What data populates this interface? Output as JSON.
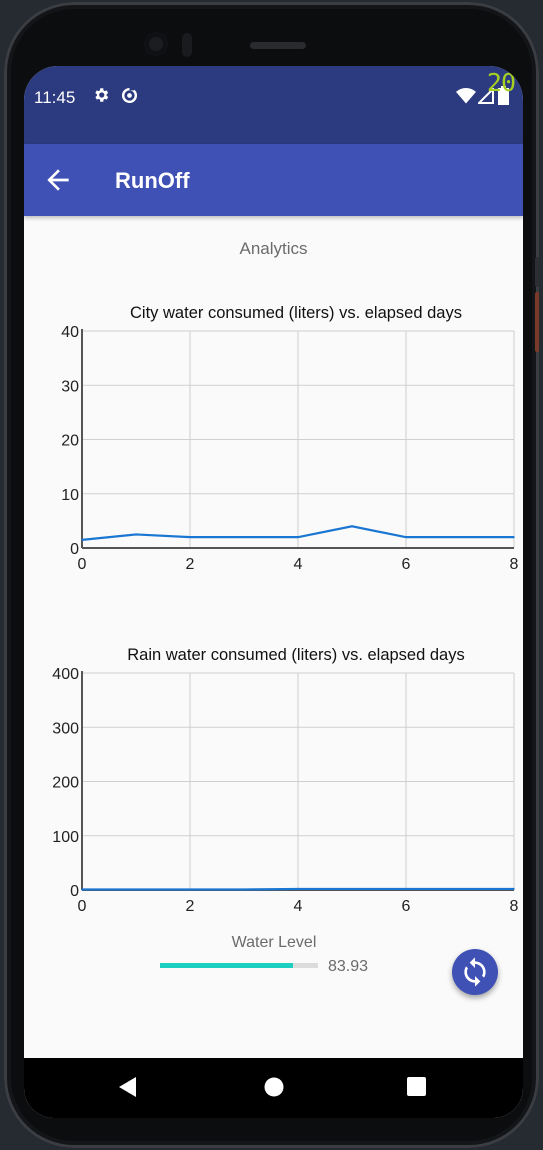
{
  "status_bar": {
    "time": "11:45",
    "icons": [
      "gear-icon",
      "data-saver-icon",
      "wifi-icon",
      "signal-icon",
      "battery-icon"
    ],
    "corner_number": "20"
  },
  "app_bar": {
    "title": "RunOff",
    "back_icon": "arrow-left-icon",
    "color": "#3f51b5"
  },
  "page": {
    "heading": "Analytics"
  },
  "chart_data": [
    {
      "type": "line",
      "title": "City water consumed (liters) vs. elapsed days",
      "xlabel": "",
      "ylabel": "",
      "xlim": [
        0,
        8
      ],
      "ylim": [
        0,
        40
      ],
      "x_ticks": [
        0,
        2,
        4,
        6,
        8
      ],
      "y_ticks": [
        0,
        10,
        20,
        30,
        40
      ],
      "grid": true,
      "series": [
        {
          "color": "#1976d2",
          "x": [
            0,
            1,
            2,
            3,
            4,
            5,
            6,
            7,
            8
          ],
          "y": [
            1.5,
            2.5,
            2,
            2,
            2,
            4,
            2,
            2,
            2
          ]
        }
      ]
    },
    {
      "type": "line",
      "title": "Rain water consumed (liters) vs. elapsed days",
      "xlabel": "",
      "ylabel": "",
      "xlim": [
        0,
        8
      ],
      "ylim": [
        0,
        400
      ],
      "x_ticks": [
        0,
        2,
        4,
        6,
        8
      ],
      "y_ticks": [
        0,
        100,
        200,
        300,
        400
      ],
      "grid": true,
      "series": [
        {
          "color": "#1976d2",
          "x": [
            0,
            1,
            2,
            3,
            4,
            5,
            6,
            7,
            8
          ],
          "y": [
            1,
            1,
            1,
            1,
            2,
            2,
            2,
            2,
            2
          ]
        }
      ]
    }
  ],
  "water_level": {
    "label": "Water Level",
    "value": "83.93",
    "fraction": 0.8393,
    "fill_color": "#1ccfc0"
  },
  "fab": {
    "icon": "refresh-icon"
  },
  "nav_bar": {
    "buttons": [
      "back-triangle-icon",
      "home-circle-icon",
      "recents-square-icon"
    ]
  }
}
